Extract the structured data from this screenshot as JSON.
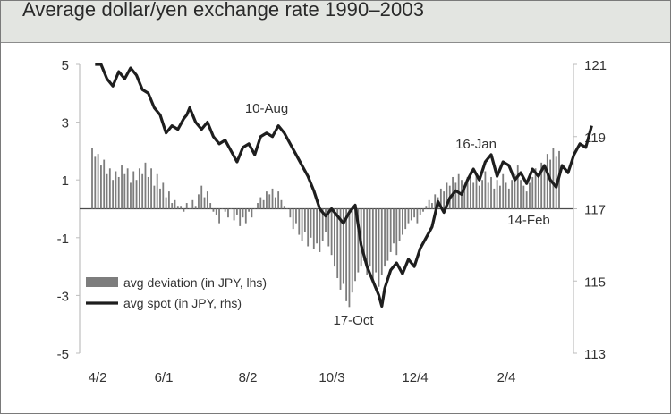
{
  "chart_data": {
    "type": "bar+line",
    "title": "Average dollar/yen exchange rate 1990–2003",
    "x_ticks": [
      "4/2",
      "6/1",
      "8/2",
      "10/3",
      "12/4",
      "2/4"
    ],
    "y_left": {
      "ylim": [
        -5,
        5
      ],
      "ticks": [
        5,
        3,
        1,
        -1,
        -3,
        -5
      ]
    },
    "y_right": {
      "ylim": [
        113,
        121
      ],
      "ticks": [
        121,
        119,
        117,
        115,
        113
      ]
    },
    "legend": {
      "placement": "lower-left",
      "entries": [
        "avg deviation (in JPY, lhs)",
        "avg spot (in JPY, rhs)"
      ]
    },
    "annotations": [
      "10-Aug",
      "17-Oct",
      "16-Jan",
      "14-Feb"
    ],
    "x_label": "",
    "y_label": "",
    "series": [
      {
        "name": "avg deviation (in JPY, lhs)",
        "axis": "left",
        "type": "bar",
        "values": [
          2.1,
          1.8,
          1.9,
          1.5,
          1.7,
          1.2,
          1.4,
          1.0,
          1.3,
          1.1,
          1.5,
          1.2,
          1.4,
          0.9,
          1.3,
          1.0,
          1.4,
          1.2,
          1.6,
          1.1,
          1.4,
          0.8,
          1.2,
          0.7,
          0.9,
          0.4,
          0.6,
          0.2,
          0.3,
          0.1,
          0.1,
          -0.1,
          0.2,
          0.0,
          0.3,
          0.1,
          0.5,
          0.8,
          0.4,
          0.6,
          0.2,
          -0.1,
          -0.2,
          -0.5,
          0.0,
          -0.1,
          -0.3,
          0.0,
          -0.4,
          -0.2,
          -0.6,
          -0.3,
          -0.5,
          -0.1,
          -0.3,
          0.0,
          0.2,
          0.4,
          0.3,
          0.6,
          0.5,
          0.7,
          0.4,
          0.6,
          0.3,
          0.1,
          0.0,
          -0.3,
          -0.7,
          -0.5,
          -0.9,
          -1.1,
          -0.8,
          -1.3,
          -1.0,
          -1.4,
          -1.2,
          -1.5,
          -1.1,
          -0.8,
          -1.3,
          -1.6,
          -2.0,
          -2.4,
          -2.8,
          -2.6,
          -3.2,
          -3.4,
          -2.9,
          -2.5,
          -2.2,
          -2.0,
          -1.8,
          -2.3,
          -2.0,
          -2.5,
          -2.2,
          -2.7,
          -2.3,
          -2.0,
          -1.8,
          -1.5,
          -1.2,
          -1.6,
          -1.1,
          -0.9,
          -0.7,
          -0.5,
          -0.4,
          -0.3,
          -0.5,
          -0.2,
          -0.1,
          0.1,
          0.3,
          0.2,
          0.5,
          0.4,
          0.7,
          0.6,
          0.9,
          0.8,
          1.1,
          0.9,
          1.2,
          1.0,
          0.8,
          1.1,
          1.3,
          0.9,
          1.2,
          0.8,
          1.0,
          1.3,
          0.9,
          1.1,
          0.7,
          1.0,
          0.8,
          1.2,
          0.9,
          0.7,
          1.0,
          1.2,
          1.5,
          1.0,
          0.8,
          0.6,
          0.9,
          1.1,
          1.4,
          1.2,
          1.6,
          1.5,
          1.9,
          1.7,
          2.1,
          1.8,
          2.0
        ]
      },
      {
        "name": "avg spot (in JPY, rhs)",
        "axis": "right",
        "type": "line",
        "points": [
          [
            1,
            121
          ],
          [
            3,
            121
          ],
          [
            5,
            120.6
          ],
          [
            7,
            120.4
          ],
          [
            9,
            120.8
          ],
          [
            11,
            120.6
          ],
          [
            13,
            120.9
          ],
          [
            15,
            120.7
          ],
          [
            17,
            120.3
          ],
          [
            19,
            120.2
          ],
          [
            21,
            119.8
          ],
          [
            23,
            119.6
          ],
          [
            25,
            119.1
          ],
          [
            27,
            119.3
          ],
          [
            29,
            119.2
          ],
          [
            31,
            119.5
          ],
          [
            32,
            119.6
          ],
          [
            33,
            119.8
          ],
          [
            35,
            119.4
          ],
          [
            37,
            119.2
          ],
          [
            39,
            119.4
          ],
          [
            41,
            119.0
          ],
          [
            43,
            118.8
          ],
          [
            45,
            118.9
          ],
          [
            47,
            118.6
          ],
          [
            49,
            118.3
          ],
          [
            51,
            118.7
          ],
          [
            53,
            118.8
          ],
          [
            55,
            118.5
          ],
          [
            57,
            119.0
          ],
          [
            59,
            119.1
          ],
          [
            61,
            119.0
          ],
          [
            63,
            119.3
          ],
          [
            65,
            119.1
          ],
          [
            67,
            118.8
          ],
          [
            69,
            118.5
          ],
          [
            71,
            118.2
          ],
          [
            73,
            117.9
          ],
          [
            75,
            117.5
          ],
          [
            77,
            117.0
          ],
          [
            79,
            116.8
          ],
          [
            81,
            117.0
          ],
          [
            83,
            116.8
          ],
          [
            85,
            116.6
          ],
          [
            87,
            116.9
          ],
          [
            89,
            117.1
          ],
          [
            91,
            116.0
          ],
          [
            93,
            115.4
          ],
          [
            95,
            115.0
          ],
          [
            97,
            114.6
          ],
          [
            98,
            114.3
          ],
          [
            99,
            114.8
          ],
          [
            101,
            115.3
          ],
          [
            103,
            115.5
          ],
          [
            105,
            115.2
          ],
          [
            107,
            115.6
          ],
          [
            109,
            115.4
          ],
          [
            111,
            115.9
          ],
          [
            113,
            116.2
          ],
          [
            115,
            116.5
          ],
          [
            117,
            117.2
          ],
          [
            119,
            116.9
          ],
          [
            121,
            117.3
          ],
          [
            123,
            117.5
          ],
          [
            125,
            117.4
          ],
          [
            127,
            117.8
          ],
          [
            129,
            118.1
          ],
          [
            131,
            117.8
          ],
          [
            133,
            118.3
          ],
          [
            135,
            118.5
          ],
          [
            137,
            117.9
          ],
          [
            139,
            118.3
          ],
          [
            141,
            118.2
          ],
          [
            143,
            117.8
          ],
          [
            145,
            118.0
          ],
          [
            147,
            117.7
          ],
          [
            149,
            118.1
          ],
          [
            151,
            117.9
          ],
          [
            153,
            118.2
          ],
          [
            155,
            117.8
          ],
          [
            157,
            117.6
          ],
          [
            159,
            118.2
          ],
          [
            161,
            118.0
          ],
          [
            163,
            118.5
          ],
          [
            165,
            118.8
          ],
          [
            167,
            118.7
          ],
          [
            169,
            119.3
          ]
        ]
      }
    ]
  }
}
